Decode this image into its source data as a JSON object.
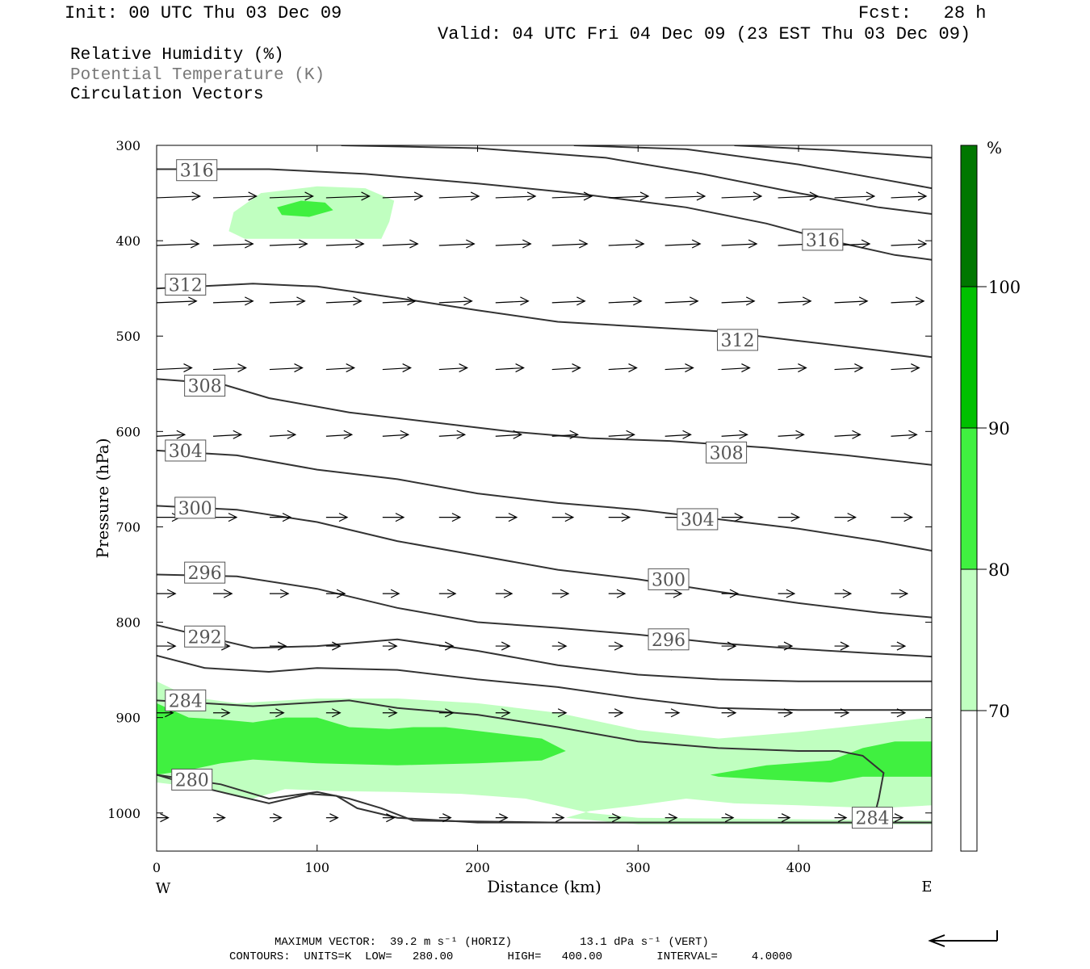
{
  "header": {
    "init": "Init: 00 UTC Thu 03 Dec 09",
    "fcst": "Fcst:   28 h",
    "valid": "Valid: 04 UTC Fri 04 Dec 09 (23 EST Thu 03 Dec 09)"
  },
  "fields": [
    "Relative Humidity (%)",
    "Potential Temperature (K)",
    "Circulation Vectors"
  ],
  "footer": {
    "max_vector": "MAXIMUM VECTOR:  39.2 m s⁻¹ (HORIZ)          13.1 dPa s⁻¹ (VERT)",
    "contours": "CONTOURS:  UNITS=K  LOW=   280.00        HIGH=   400.00        INTERVAL=     4.0000"
  },
  "colors": {
    "rh70": "#c0ffc0",
    "rh80": "#40f040",
    "rh90": "#00c000",
    "rh100": "#007700",
    "contour": "#333333",
    "vector": "#000000"
  },
  "chart_data": {
    "type": "heatmap",
    "title": "Relative Humidity (%)",
    "xlabel": "Distance (km)",
    "ylabel": "Pressure (hPa)",
    "xlim": [
      0,
      483
    ],
    "ylim": [
      1040,
      300
    ],
    "x_ticks": [
      0,
      100,
      200,
      300,
      400
    ],
    "y_ticks": [
      300,
      400,
      500,
      600,
      700,
      800,
      900,
      1000
    ],
    "x_end_labels": {
      "left": "W",
      "right": "E"
    },
    "colorbar": {
      "unit": "%",
      "levels": [
        70,
        80,
        90,
        100
      ],
      "colors": [
        "#ffffff",
        "#c0ffc0",
        "#40f040",
        "#00c000",
        "#007700"
      ]
    },
    "rh_regions": [
      {
        "level": 70,
        "points": [
          [
            45,
            390
          ],
          [
            48,
            370
          ],
          [
            65,
            350
          ],
          [
            100,
            343
          ],
          [
            130,
            345
          ],
          [
            148,
            358
          ],
          [
            145,
            380
          ],
          [
            140,
            398
          ],
          [
            95,
            398
          ],
          [
            55,
            398
          ]
        ]
      },
      {
        "level": 80,
        "points": [
          [
            75,
            365
          ],
          [
            90,
            358
          ],
          [
            105,
            360
          ],
          [
            110,
            368
          ],
          [
            95,
            375
          ],
          [
            78,
            373
          ]
        ]
      },
      {
        "level": 70,
        "points": [
          [
            0,
            862
          ],
          [
            20,
            878
          ],
          [
            50,
            885
          ],
          [
            100,
            880
          ],
          [
            150,
            880
          ],
          [
            200,
            885
          ],
          [
            250,
            895
          ],
          [
            300,
            913
          ],
          [
            350,
            922
          ],
          [
            400,
            915
          ],
          [
            450,
            906
          ],
          [
            483,
            900
          ],
          [
            483,
            992
          ],
          [
            450,
            995
          ],
          [
            400,
            992
          ],
          [
            360,
            990
          ],
          [
            330,
            985
          ],
          [
            300,
            992
          ],
          [
            270,
            998
          ],
          [
            255,
            1005
          ],
          [
            300,
            1012
          ],
          [
            483,
            1012
          ],
          [
            483,
            1008
          ],
          [
            300,
            1005
          ],
          [
            270,
            1000
          ],
          [
            230,
            985
          ],
          [
            190,
            980
          ],
          [
            150,
            978
          ],
          [
            110,
            977
          ],
          [
            80,
            975
          ],
          [
            60,
            985
          ],
          [
            40,
            978
          ],
          [
            20,
            972
          ],
          [
            0,
            968
          ]
        ]
      },
      {
        "level": 80,
        "points": [
          [
            0,
            885
          ],
          [
            20,
            900
          ],
          [
            40,
            902
          ],
          [
            60,
            905
          ],
          [
            80,
            900
          ],
          [
            100,
            900
          ],
          [
            120,
            910
          ],
          [
            145,
            912
          ],
          [
            160,
            910
          ],
          [
            180,
            910
          ],
          [
            220,
            918
          ],
          [
            240,
            922
          ],
          [
            255,
            935
          ],
          [
            240,
            945
          ],
          [
            200,
            948
          ],
          [
            150,
            950
          ],
          [
            100,
            948
          ],
          [
            60,
            944
          ],
          [
            40,
            948
          ],
          [
            20,
            955
          ],
          [
            0,
            960
          ]
        ]
      },
      {
        "level": 80,
        "points": [
          [
            345,
            960
          ],
          [
            380,
            950
          ],
          [
            420,
            945
          ],
          [
            440,
            932
          ],
          [
            460,
            925
          ],
          [
            483,
            925
          ],
          [
            483,
            962
          ],
          [
            460,
            962
          ],
          [
            440,
            962
          ],
          [
            420,
            968
          ],
          [
            380,
            965
          ],
          [
            350,
            962
          ]
        ]
      }
    ],
    "theta_contours": [
      {
        "label": "316",
        "points": [
          [
            0,
            325
          ],
          [
            70,
            325
          ],
          [
            130,
            330
          ],
          [
            200,
            340
          ],
          [
            260,
            350
          ],
          [
            330,
            365
          ],
          [
            380,
            382
          ],
          [
            420,
            400
          ],
          [
            460,
            415
          ],
          [
            483,
            420
          ]
        ]
      },
      {
        "label": "",
        "points": [
          [
            115,
            300
          ],
          [
            200,
            303
          ],
          [
            280,
            313
          ],
          [
            340,
            330
          ],
          [
            400,
            350
          ],
          [
            450,
            365
          ],
          [
            483,
            372
          ]
        ]
      },
      {
        "label": "",
        "points": [
          [
            260,
            300
          ],
          [
            330,
            304
          ],
          [
            400,
            320
          ],
          [
            450,
            335
          ],
          [
            483,
            345
          ]
        ]
      },
      {
        "label": "",
        "points": [
          [
            360,
            300
          ],
          [
            420,
            305
          ],
          [
            460,
            310
          ],
          [
            483,
            313
          ]
        ]
      },
      {
        "label": "312",
        "points": [
          [
            0,
            450
          ],
          [
            60,
            445
          ],
          [
            100,
            448
          ],
          [
            150,
            460
          ],
          [
            200,
            473
          ],
          [
            250,
            485
          ],
          [
            300,
            490
          ],
          [
            350,
            495
          ],
          [
            400,
            505
          ],
          [
            450,
            515
          ],
          [
            483,
            522
          ]
        ]
      },
      {
        "label": "308",
        "points": [
          [
            0,
            545
          ],
          [
            40,
            550
          ],
          [
            70,
            565
          ],
          [
            120,
            580
          ],
          [
            170,
            590
          ],
          [
            220,
            600
          ],
          [
            270,
            607
          ],
          [
            320,
            610
          ],
          [
            380,
            617
          ],
          [
            430,
            625
          ],
          [
            483,
            635
          ]
        ]
      },
      {
        "label": "304",
        "points": [
          [
            0,
            620
          ],
          [
            50,
            625
          ],
          [
            100,
            640
          ],
          [
            150,
            650
          ],
          [
            200,
            665
          ],
          [
            250,
            675
          ],
          [
            300,
            682
          ],
          [
            350,
            692
          ],
          [
            400,
            702
          ],
          [
            450,
            715
          ],
          [
            483,
            725
          ]
        ]
      },
      {
        "label": "300",
        "points": [
          [
            0,
            678
          ],
          [
            50,
            682
          ],
          [
            100,
            695
          ],
          [
            150,
            715
          ],
          [
            200,
            730
          ],
          [
            250,
            745
          ],
          [
            300,
            755
          ],
          [
            350,
            768
          ],
          [
            400,
            780
          ],
          [
            450,
            790
          ],
          [
            483,
            795
          ]
        ]
      },
      {
        "label": "296",
        "points": [
          [
            0,
            750
          ],
          [
            50,
            752
          ],
          [
            100,
            765
          ],
          [
            150,
            785
          ],
          [
            200,
            800
          ],
          [
            250,
            806
          ],
          [
            300,
            813
          ],
          [
            350,
            822
          ],
          [
            400,
            828
          ],
          [
            450,
            833
          ],
          [
            483,
            836
          ]
        ]
      },
      {
        "label": "292",
        "points": [
          [
            0,
            803
          ],
          [
            30,
            815
          ],
          [
            60,
            827
          ],
          [
            100,
            825
          ],
          [
            150,
            818
          ],
          [
            200,
            830
          ],
          [
            250,
            845
          ],
          [
            300,
            855
          ],
          [
            350,
            860
          ],
          [
            400,
            862
          ],
          [
            450,
            862
          ],
          [
            483,
            862
          ]
        ]
      },
      {
        "label": "",
        "points": [
          [
            0,
            835
          ],
          [
            30,
            848
          ],
          [
            70,
            852
          ],
          [
            100,
            848
          ],
          [
            150,
            850
          ],
          [
            200,
            860
          ],
          [
            250,
            868
          ],
          [
            300,
            880
          ],
          [
            350,
            890
          ],
          [
            400,
            892
          ],
          [
            450,
            892
          ],
          [
            483,
            892
          ]
        ]
      },
      {
        "label": "284",
        "points": [
          [
            0,
            882
          ],
          [
            30,
            885
          ],
          [
            60,
            888
          ],
          [
            120,
            882
          ],
          [
            150,
            890
          ],
          [
            200,
            897
          ],
          [
            250,
            910
          ],
          [
            300,
            925
          ],
          [
            350,
            932
          ],
          [
            400,
            935
          ],
          [
            425,
            935
          ],
          [
            440,
            940
          ],
          [
            453,
            958
          ],
          [
            450,
            985
          ],
          [
            447,
            1005
          ]
        ]
      },
      {
        "label": "",
        "points": [
          [
            0,
            960
          ],
          [
            40,
            970
          ],
          [
            70,
            985
          ],
          [
            100,
            978
          ],
          [
            120,
            985
          ],
          [
            140,
            995
          ],
          [
            160,
            1008
          ],
          [
            250,
            1010
          ],
          [
            350,
            1010
          ],
          [
            450,
            1010
          ],
          [
            483,
            1010
          ]
        ]
      },
      {
        "label": "280",
        "points": [
          [
            0,
            960
          ],
          [
            20,
            970
          ],
          [
            50,
            982
          ],
          [
            70,
            990
          ],
          [
            95,
            980
          ],
          [
            112,
            982
          ],
          [
            125,
            995
          ],
          [
            150,
            1005
          ],
          [
            200,
            1010
          ],
          [
            300,
            1010
          ],
          [
            400,
            1010
          ],
          [
            483,
            1010
          ]
        ]
      }
    ],
    "contour_labels": [
      {
        "text": "316",
        "x": 25,
        "p": 326
      },
      {
        "text": "316",
        "x": 415,
        "p": 399
      },
      {
        "text": "312",
        "x": 18,
        "p": 446
      },
      {
        "text": "312",
        "x": 362,
        "p": 504
      },
      {
        "text": "308",
        "x": 30,
        "p": 552
      },
      {
        "text": "308",
        "x": 355,
        "p": 622
      },
      {
        "text": "304",
        "x": 18,
        "p": 620
      },
      {
        "text": "304",
        "x": 337,
        "p": 692
      },
      {
        "text": "300",
        "x": 24,
        "p": 680
      },
      {
        "text": "300",
        "x": 319,
        "p": 755
      },
      {
        "text": "296",
        "x": 30,
        "p": 748
      },
      {
        "text": "296",
        "x": 319,
        "p": 818
      },
      {
        "text": "292",
        "x": 30,
        "p": 815
      },
      {
        "text": "284",
        "x": 18,
        "p": 882
      },
      {
        "text": "284",
        "x": 446,
        "p": 1005
      },
      {
        "text": "280",
        "x": 22,
        "p": 965
      }
    ],
    "vector_rows": [
      {
        "p": 355,
        "dp": 0,
        "u": [
          37,
          37,
          37,
          37,
          34,
          34,
          34,
          34,
          34,
          34,
          34,
          34,
          34,
          30
        ]
      },
      {
        "p": 405,
        "dp": 0,
        "u": [
          36,
          34,
          32,
          32,
          30,
          30,
          30,
          30,
          30,
          30,
          30,
          30,
          30,
          30
        ]
      },
      {
        "p": 465,
        "dp": 0,
        "u": [
          34,
          34,
          30,
          30,
          28,
          28,
          28,
          28,
          28,
          28,
          28,
          28,
          28,
          28
        ]
      },
      {
        "p": 535,
        "dp": 0,
        "u": [
          30,
          28,
          28,
          24,
          24,
          24,
          24,
          24,
          24,
          24,
          24,
          24,
          24,
          24
        ]
      },
      {
        "p": 605,
        "dp": 0,
        "u": [
          24,
          24,
          22,
          22,
          22,
          22,
          22,
          22,
          22,
          22,
          22,
          22,
          22,
          22
        ]
      },
      {
        "p": 690,
        "dp": 0,
        "u": [
          20,
          20,
          18,
          18,
          18,
          18,
          18,
          18,
          18,
          18,
          18,
          18,
          18,
          18
        ]
      },
      {
        "p": 770,
        "dp": 0,
        "u": [
          16,
          16,
          16,
          16,
          14,
          14,
          14,
          14,
          14,
          14,
          14,
          14,
          14,
          14
        ]
      },
      {
        "p": 825,
        "dp": 0,
        "u": [
          16,
          14,
          14,
          12,
          12,
          12,
          12,
          12,
          12,
          12,
          12,
          12,
          12,
          12
        ]
      },
      {
        "p": 895,
        "dp": 0,
        "u": [
          14,
          14,
          12,
          12,
          12,
          12,
          12,
          12,
          12,
          12,
          12,
          12,
          12,
          12
        ]
      },
      {
        "p": 1005,
        "dp": 0,
        "u": [
          10,
          10,
          10,
          10,
          10,
          10,
          10,
          10,
          10,
          10,
          10,
          10,
          10,
          10
        ]
      }
    ]
  }
}
